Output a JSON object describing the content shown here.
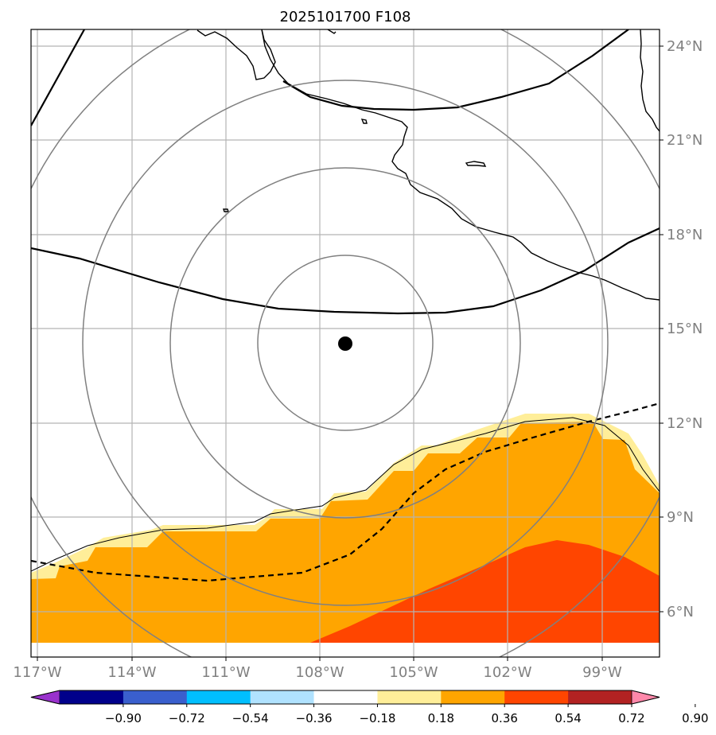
{
  "title": "2025101700 F108",
  "latitude_labels": [
    "24°N",
    "21°N",
    "18°N",
    "15°N",
    "12°N",
    "9°N",
    "6°N"
  ],
  "longitude_labels": [
    "117°W",
    "114°W",
    "111°W",
    "108°W",
    "105°W",
    "102°W",
    "99°W"
  ],
  "colorbar": {
    "tick_labels": [
      "−0.90",
      "−0.72",
      "−0.54",
      "−0.36",
      "−0.18",
      "0.18",
      "0.36",
      "0.54",
      "0.72",
      "0.90"
    ],
    "colors": [
      "#9932cc",
      "#00008b",
      "#3a5fcd",
      "#00bfff",
      "#b0e2ff",
      "#ffffff",
      "#ffee99",
      "#ffa500",
      "#ff4500",
      "#b22222",
      "#ff88aa"
    ]
  },
  "map": {
    "domain": {
      "lon_range": [
        -117.2,
        -97.2
      ],
      "lat_range": [
        4.9,
        24.4
      ]
    },
    "storm_center": {
      "lon": -107.0,
      "lat": 14.5
    },
    "range_rings_degrees": [
      2.75,
      5.5,
      8.25,
      11.0
    ],
    "fill_colors": {
      "light": "#ffee99",
      "medium": "#ffa500",
      "strong": "#ff4500"
    },
    "grid_color": "#b4b4b4",
    "ring_color": "#808080"
  }
}
